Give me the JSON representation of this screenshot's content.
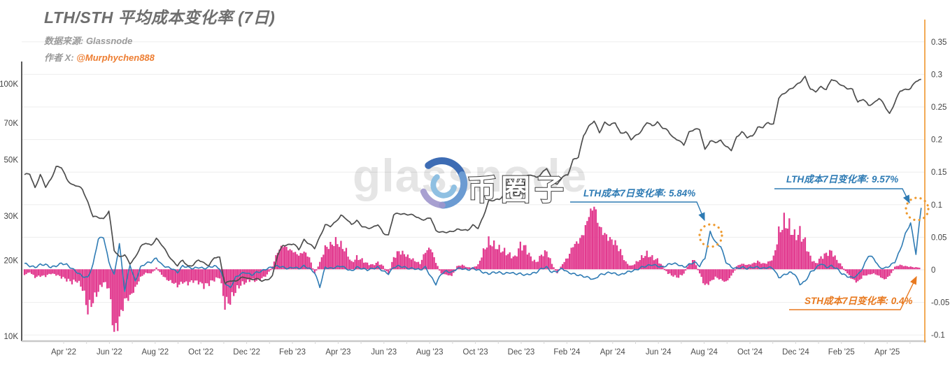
{
  "header": {
    "title": "LTH/STH 平均成本变化率 (7日)",
    "source_label": "数据来源: Glassnode",
    "author_label": "作者 X: ",
    "author_handle": "@Murphychen888"
  },
  "watermark": {
    "text": "glassnode",
    "logo_text": "币圈子"
  },
  "colors": {
    "price_line": "#4d4d4d",
    "lth_line": "#2e7bb4",
    "sth_bar": "#e23a8f",
    "right_axis": "#f0a144",
    "left_axis": "#5a5a5a",
    "bottom_axis": "#c9c9c9",
    "grid": "#ededed",
    "tick_text": "#434343",
    "circle_highlight": "#ee9a2f",
    "annotation_orange": "#e8791f"
  },
  "chart_data": {
    "type": "line+bar combo (price log line, LTH 7d change line, STH 7d change bars)",
    "title": "LTH/STH 平均成本变化率 (7日)",
    "x_start": "2022-02-08",
    "x_end": "2025-05-16",
    "x_step": "weekly",
    "x_tick_labels": [
      "Apr '22",
      "Jun '22",
      "Aug '22",
      "Oct '22",
      "Dec '22",
      "Feb '23",
      "Apr '23",
      "Jun '23",
      "Aug '23",
      "Oct '23",
      "Dec '23",
      "Feb '24",
      "Apr '24",
      "Jun '24",
      "Aug '24",
      "Oct '24",
      "Dec '24",
      "Feb '25",
      "Apr '25"
    ],
    "left_axis": {
      "scale": "log",
      "unit": "USD",
      "ticks": [
        [
          "10K",
          10
        ],
        [
          "20K",
          20
        ],
        [
          "30K",
          30
        ],
        [
          "50K",
          50
        ],
        [
          "70K",
          70
        ],
        [
          "100K",
          100
        ]
      ]
    },
    "right_axis": {
      "scale": "linear",
      "ticks": [
        0.35,
        0.3,
        0.25,
        0.2,
        0.15,
        0.1,
        0.05,
        0,
        -0.05,
        -0.1
      ],
      "range": [
        -0.1,
        0.35
      ],
      "grid": true
    },
    "series": {
      "price_k_usd": [
        43.5,
        44.2,
        38.8,
        43.5,
        39,
        42,
        47,
        46.5,
        42,
        40,
        39.5,
        38,
        34,
        30,
        29.5,
        29,
        31.5,
        22,
        20.5,
        21,
        19.5,
        20.5,
        22.5,
        23.5,
        23,
        24.3,
        23,
        21.5,
        20,
        19,
        20,
        19,
        19.2,
        20,
        19.5,
        19.2,
        20.5,
        20.4,
        16.2,
        16.7,
        16.4,
        17,
        17.2,
        16.8,
        16.8,
        16.6,
        16.8,
        17.3,
        20.9,
        23,
        23.1,
        23.2,
        22,
        24.2,
        23.3,
        22.2,
        24.7,
        27.8,
        27.3,
        28.2,
        30.2,
        29.4,
        27.6,
        28.6,
        27.4,
        26.9,
        26.8,
        27.7,
        25.8,
        25.1,
        30.2,
        30.7,
        30.6,
        30.3,
        29.9,
        29.2,
        29.1,
        29.4,
        26.1,
        26,
        25.9,
        25.8,
        26.5,
        26.6,
        26.2,
        27.4,
        26.9,
        30,
        34.2,
        34.5,
        35.1,
        36.5,
        37.4,
        38,
        41.5,
        42.7,
        43.5,
        42.6,
        44.2,
        46.3,
        41.5,
        40,
        43.1,
        43.3,
        49.9,
        51.6,
        62.4,
        67.5,
        71.5,
        64.5,
        70,
        68.3,
        70.6,
        63.8,
        64.3,
        60.2,
        62.9,
        65.2,
        70.2,
        68.2,
        70.8,
        66.9,
        64.9,
        61.3,
        60.2,
        57,
        64.1,
        66.5,
        66.2,
        54.5,
        59.4,
        59.1,
        59.5,
        56.2,
        54.8,
        61.7,
        64.3,
        61.3,
        62.3,
        67.3,
        67.1,
        70.2,
        69.4,
        88,
        91.2,
        94.9,
        98.3,
        101.1,
        106.1,
        95.8,
        93.6,
        96.9,
        94.7,
        105,
        101.9,
        97.8,
        96.1,
        95.6,
        84.2,
        86.8,
        82.6,
        84,
        87.5,
        82.5,
        76.3,
        84.5,
        93.4,
        94.8,
        96.5,
        102.5,
        103.3
      ],
      "lth_7d_change": [
        0.01,
        0.006,
        0.004,
        0.008,
        0.008,
        0.004,
        0.006,
        0.01,
        0.008,
        0.002,
        -0.004,
        -0.01,
        -0.012,
        0.008,
        0.048,
        0.05,
        0.012,
        -0.008,
        0.04,
        -0.032,
        0.008,
        -0.018,
        0.004,
        0.01,
        0.012,
        0.018,
        0.008,
        0.004,
        0.002,
        -0.004,
        0.006,
        0.004,
        0.002,
        0.004,
        0.002,
        0.004,
        0.006,
        0.002,
        -0.02,
        -0.028,
        -0.012,
        -0.006,
        -0.004,
        -0.008,
        -0.004,
        -0.002,
        0.002,
        0.004,
        0.006,
        0.004,
        0.002,
        0.004,
        0.002,
        0.006,
        0.002,
        -0.004,
        -0.026,
        0.004,
        0.002,
        0.004,
        0.006,
        0.002,
        -0.002,
        0.004,
        0.002,
        0,
        0.002,
        0.004,
        -0.002,
        -0.006,
        0.004,
        0.006,
        0.004,
        0.002,
        0.002,
        0,
        0.004,
        -0.01,
        -0.022,
        -0.006,
        -0.002,
        -0.004,
        0.002,
        0.002,
        0,
        0.002,
        0,
        -0.004,
        -0.006,
        -0.004,
        -0.004,
        -0.006,
        -0.004,
        -0.006,
        -0.006,
        -0.008,
        -0.006,
        -0.004,
        0.002,
        0.004,
        -0.004,
        -0.002,
        0.002,
        -0.004,
        -0.006,
        -0.008,
        -0.01,
        -0.012,
        -0.015,
        -0.008,
        -0.006,
        -0.004,
        -0.006,
        -0.008,
        -0.004,
        -0.002,
        0,
        0.004,
        0.006,
        0.008,
        0.006,
        0.004,
        0.008,
        0.01,
        0.008,
        0.004,
        0.008,
        0.012,
        0.006,
        0.018,
        0.0584,
        0.042,
        0.036,
        0.012,
        0.004,
        0.002,
        0.004,
        0.002,
        0.004,
        0.004,
        0.002,
        0.004,
        0.002,
        -0.012,
        -0.008,
        -0.004,
        -0.006,
        -0.022,
        -0.018,
        -0.004,
        0.002,
        0.01,
        0.004,
        0.006,
        0.002,
        -0.006,
        -0.01,
        -0.012,
        -0.008,
        0.004,
        0.022,
        0.018,
        0.004,
        0.002,
        0.006,
        0.012,
        0.03,
        0.055,
        0.072,
        0.025,
        0.0957
      ],
      "sth_7d_change": [
        -0.008,
        -0.004,
        -0.012,
        -0.01,
        -0.01,
        -0.006,
        -0.008,
        -0.012,
        -0.016,
        -0.02,
        -0.018,
        -0.03,
        -0.065,
        -0.05,
        -0.034,
        -0.02,
        -0.03,
        -0.104,
        -0.08,
        -0.05,
        -0.044,
        -0.03,
        -0.012,
        -0.005,
        -0.006,
        0.004,
        -0.008,
        -0.016,
        -0.02,
        -0.026,
        -0.02,
        -0.022,
        -0.018,
        -0.02,
        -0.026,
        -0.022,
        -0.016,
        -0.012,
        -0.056,
        -0.05,
        -0.034,
        -0.024,
        -0.02,
        -0.016,
        -0.018,
        -0.014,
        -0.008,
        0.006,
        0.03,
        0.04,
        0.034,
        0.03,
        0.024,
        0.03,
        0.02,
        -0.006,
        0.012,
        0.036,
        0.04,
        0.046,
        0.04,
        0.03,
        0.012,
        0.02,
        0.016,
        0.01,
        0.008,
        0.012,
        0.006,
        -0.006,
        0.02,
        0.03,
        0.026,
        0.02,
        0.015,
        0.01,
        0.03,
        0.036,
        0.012,
        -0.006,
        -0.008,
        -0.01,
        0.006,
        0.008,
        0.004,
        0.004,
        0.008,
        0.03,
        0.046,
        0.04,
        0.034,
        0.03,
        0.024,
        0.02,
        0.04,
        0.036,
        0.02,
        0.012,
        0.024,
        0.03,
        0.01,
        -0.006,
        0.01,
        0.02,
        0.04,
        0.046,
        0.06,
        0.09,
        0.105,
        0.07,
        0.058,
        0.05,
        0.044,
        0.03,
        0.012,
        0.006,
        0.012,
        0.02,
        0.026,
        0.02,
        0.016,
        0.006,
        -0.006,
        -0.01,
        -0.012,
        -0.006,
        0.01,
        0.016,
        -0.006,
        -0.026,
        -0.02,
        -0.012,
        -0.016,
        -0.02,
        -0.01,
        0.006,
        0.01,
        0.008,
        0.01,
        0.014,
        0.01,
        0.012,
        0.02,
        0.06,
        0.078,
        0.07,
        0.055,
        0.06,
        0.045,
        0.02,
        0.01,
        0.02,
        0.026,
        0.03,
        0.016,
        0.006,
        -0.006,
        -0.016,
        -0.02,
        -0.01,
        -0.008,
        -0.006,
        -0.01,
        -0.016,
        -0.01,
        0.005,
        0.008,
        0.006,
        0.005,
        0.004,
        0.004
      ]
    },
    "annotations": [
      {
        "id": "lth-ann-1",
        "text": "LTH成本7日变化率: 5.84%",
        "value": "5.84%",
        "color": "#2e7bb4",
        "tx": 834,
        "ty": 281,
        "line": [
          [
            815,
            289
          ],
          [
            996,
            289
          ],
          [
            1007,
            315
          ]
        ],
        "circle": {
          "cx": 1016,
          "cy": 337,
          "r": 16
        }
      },
      {
        "id": "lth-ann-2",
        "text": "LTH成本7日变化率: 9.57%",
        "value": "9.57%",
        "color": "#2e7bb4",
        "tx": 1124,
        "ty": 261,
        "line": [
          [
            1107,
            270
          ],
          [
            1290,
            270
          ],
          [
            1300,
            290
          ]
        ],
        "circle": {
          "cx": 1311,
          "cy": 299,
          "r": 16
        }
      },
      {
        "id": "sth-ann-1",
        "text": "STH成本7日变化率: 0.4%",
        "value": "0.4%",
        "color": "#e8791f",
        "tx": 1150,
        "ty": 435,
        "line": [
          [
            1128,
            443
          ],
          [
            1287,
            443
          ],
          [
            1310,
            396
          ]
        ],
        "circle": null
      }
    ]
  }
}
